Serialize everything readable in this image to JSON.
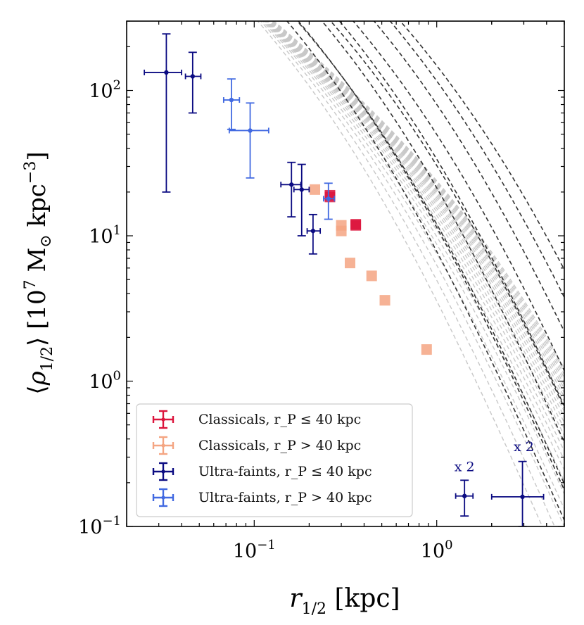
{
  "chart_data": {
    "type": "scatter",
    "xscale": "log",
    "yscale": "log",
    "xlim": [
      0.02,
      5
    ],
    "ylim": [
      0.1,
      300
    ],
    "xlabel": "r_1/2 [kpc]",
    "ylabel": "⟨ρ_1/2⟩ [10^7 M⊙ kpc^−3]",
    "x_ticks": [
      {
        "value": 0.1,
        "base": "10",
        "exp": "−1"
      },
      {
        "value": 1,
        "base": "10",
        "exp": "0"
      }
    ],
    "y_ticks": [
      {
        "value": 0.1,
        "base": "10",
        "exp": "−1"
      },
      {
        "value": 1,
        "base": "10",
        "exp": "0"
      },
      {
        "value": 10,
        "base": "10",
        "exp": "1"
      },
      {
        "value": 100,
        "base": "10",
        "exp": "2"
      }
    ],
    "grid": false,
    "legend_position": "lower-left",
    "legend": [
      {
        "text": "Classicals, r_P ≤ 40 kpc",
        "color": "#DC143C"
      },
      {
        "text": "Classicals, r_P > 40 kpc",
        "color": "#F4A582"
      },
      {
        "text": "Ultra-faints, r_P ≤ 40 kpc",
        "color": "#0B0B82"
      },
      {
        "text": "Ultra-faints, r_P > 40 kpc",
        "color": "#4169E1"
      }
    ],
    "series": [
      {
        "name": "Classicals, r_P ≤ 40 kpc",
        "color": "#DC143C",
        "marker": "square",
        "points": [
          {
            "x": 0.26,
            "y": 18.5
          },
          {
            "x": 0.26,
            "y": 19.0
          },
          {
            "x": 0.36,
            "y": 11.8
          },
          {
            "x": 0.36,
            "y": 12.0
          }
        ]
      },
      {
        "name": "Classicals, r_P > 40 kpc",
        "color": "#F4A582",
        "marker": "square",
        "points": [
          {
            "x": 0.215,
            "y": 20.8
          },
          {
            "x": 0.3,
            "y": 11.8
          },
          {
            "x": 0.3,
            "y": 10.8
          },
          {
            "x": 0.335,
            "y": 6.5
          },
          {
            "x": 0.44,
            "y": 5.3
          },
          {
            "x": 0.52,
            "y": 3.6
          },
          {
            "x": 0.88,
            "y": 1.65
          }
        ]
      },
      {
        "name": "Ultra-faints, r_P ≤ 40 kpc",
        "color": "#0B0B82",
        "marker": "dot",
        "points": [
          {
            "x": 0.033,
            "y": 133,
            "xlo": 0.025,
            "xhi": 0.04,
            "ylo": 20,
            "yhi": 245
          },
          {
            "x": 0.046,
            "y": 125,
            "xlo": 0.042,
            "xhi": 0.051,
            "ylo": 70,
            "yhi": 183
          },
          {
            "x": 0.16,
            "y": 22.5,
            "xlo": 0.14,
            "xhi": 0.18,
            "ylo": 13.5,
            "yhi": 32
          },
          {
            "x": 0.182,
            "y": 20.8,
            "xlo": 0.165,
            "xhi": 0.2,
            "ylo": 10,
            "yhi": 31
          },
          {
            "x": 0.21,
            "y": 10.8,
            "xlo": 0.195,
            "xhi": 0.23,
            "ylo": 7.5,
            "yhi": 14
          },
          {
            "x": 1.42,
            "y": 0.162,
            "xlo": 1.27,
            "xhi": 1.58,
            "ylo": 0.118,
            "yhi": 0.208,
            "note": "x 2"
          },
          {
            "x": 2.95,
            "y": 0.16,
            "xlo": 2.0,
            "xhi": 3.85,
            "ylo": 0.1,
            "yhi": 0.28,
            "note": "x 2"
          }
        ]
      },
      {
        "name": "Ultra-faints, r_P > 40 kpc",
        "color": "#4169E1",
        "marker": "dot",
        "points": [
          {
            "x": 0.075,
            "y": 86,
            "xlo": 0.068,
            "xhi": 0.083,
            "ylo": 54,
            "yhi": 120
          },
          {
            "x": 0.095,
            "y": 53,
            "xlo": 0.073,
            "xhi": 0.12,
            "ylo": 25,
            "yhi": 82
          },
          {
            "x": 0.255,
            "y": 18.0,
            "xlo": 0.24,
            "xhi": 0.275,
            "ylo": 13,
            "yhi": 23
          }
        ]
      }
    ],
    "curves": {
      "description": "dashed model density profiles (dark: selected, light gray: others)",
      "dark_color": "#333333",
      "light_color": "#C8C8C8"
    }
  },
  "annotations": [
    {
      "text": "x 2",
      "color": "#0B0B82",
      "x": 1.42,
      "y": 0.24
    },
    {
      "text": "x 2",
      "color": "#0B0B82",
      "x": 3.0,
      "y": 0.33
    }
  ]
}
